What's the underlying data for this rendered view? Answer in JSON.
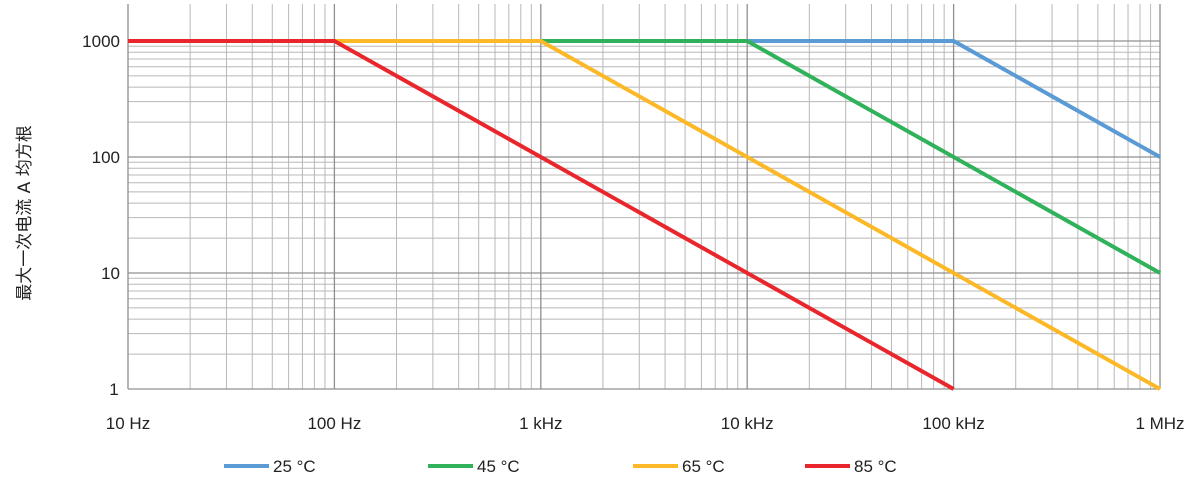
{
  "chart_data": {
    "type": "line",
    "title": "",
    "xlabel": "",
    "ylabel": "最大一次电流 A 均方根",
    "x_scale": "log",
    "y_scale": "log",
    "xlim": [
      10,
      1000000
    ],
    "ylim": [
      1,
      1000
    ],
    "grid": true,
    "legend_position": "bottom",
    "x_ticks": [
      {
        "value": 10,
        "label": "10 Hz"
      },
      {
        "value": 100,
        "label": "100 Hz"
      },
      {
        "value": 1000,
        "label": "1 kHz"
      },
      {
        "value": 10000,
        "label": "10 kHz"
      },
      {
        "value": 100000,
        "label": "100 kHz"
      },
      {
        "value": 1000000,
        "label": "1 MHz"
      }
    ],
    "y_ticks": [
      {
        "value": 1,
        "label": "1"
      },
      {
        "value": 10,
        "label": "10"
      },
      {
        "value": 100,
        "label": "100"
      },
      {
        "value": 1000,
        "label": "1000"
      }
    ],
    "series": [
      {
        "name": "25 °C",
        "color": "#5b9bd5",
        "points": [
          [
            10,
            1000
          ],
          [
            100000,
            1000
          ],
          [
            1000000,
            100
          ]
        ]
      },
      {
        "name": "45 °C",
        "color": "#2fb25a",
        "points": [
          [
            10,
            1000
          ],
          [
            10000,
            1000
          ],
          [
            1000000,
            10
          ]
        ]
      },
      {
        "name": "65 °C",
        "color": "#fdb827",
        "points": [
          [
            10,
            1000
          ],
          [
            1000,
            1000
          ],
          [
            1000000,
            1
          ]
        ]
      },
      {
        "name": "85 °C",
        "color": "#e8262b",
        "points": [
          [
            10,
            1000
          ],
          [
            100,
            1000
          ],
          [
            100000,
            1
          ]
        ]
      }
    ]
  }
}
